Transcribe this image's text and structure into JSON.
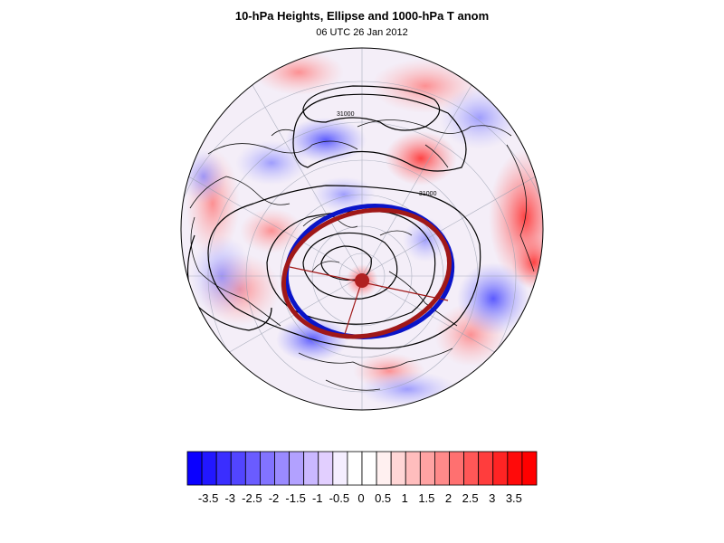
{
  "header": {
    "title": "10-hPa Heights, Ellipse and 1000-hPa T anom",
    "subtitle": "06 UTC 26 Jan 2012"
  },
  "map": {
    "projection": "polar-stereographic-north",
    "contour_labels": [
      "31000",
      "31000"
    ],
    "fill_field": "1000-hPa temperature anomaly",
    "colors": {
      "ellipse_blue": "#0a14c8",
      "ellipse_red": "#a01818",
      "contour": "#000000",
      "coast": "#000000"
    }
  },
  "colorbar": {
    "ticks": [
      "-3.5",
      "-3",
      "-2.5",
      "-2",
      "-1.5",
      "-1",
      "-0.5",
      "0",
      "0.5",
      "1",
      "1.5",
      "2",
      "2.5",
      "3",
      "3.5"
    ],
    "colors": [
      "#0a00ff",
      "#2217ff",
      "#3a2eff",
      "#5245ff",
      "#6a5cff",
      "#8273ff",
      "#9a8aff",
      "#b2a1ff",
      "#cab8ff",
      "#e2cfff",
      "#f5eeff",
      "#ffffff",
      "#ffffff",
      "#fff0f0",
      "#ffd6d6",
      "#ffbdbd",
      "#ffa3a3",
      "#ff8a8a",
      "#ff7070",
      "#ff5757",
      "#ff3d3d",
      "#ff2424",
      "#ff0a0a",
      "#ff0000"
    ]
  }
}
